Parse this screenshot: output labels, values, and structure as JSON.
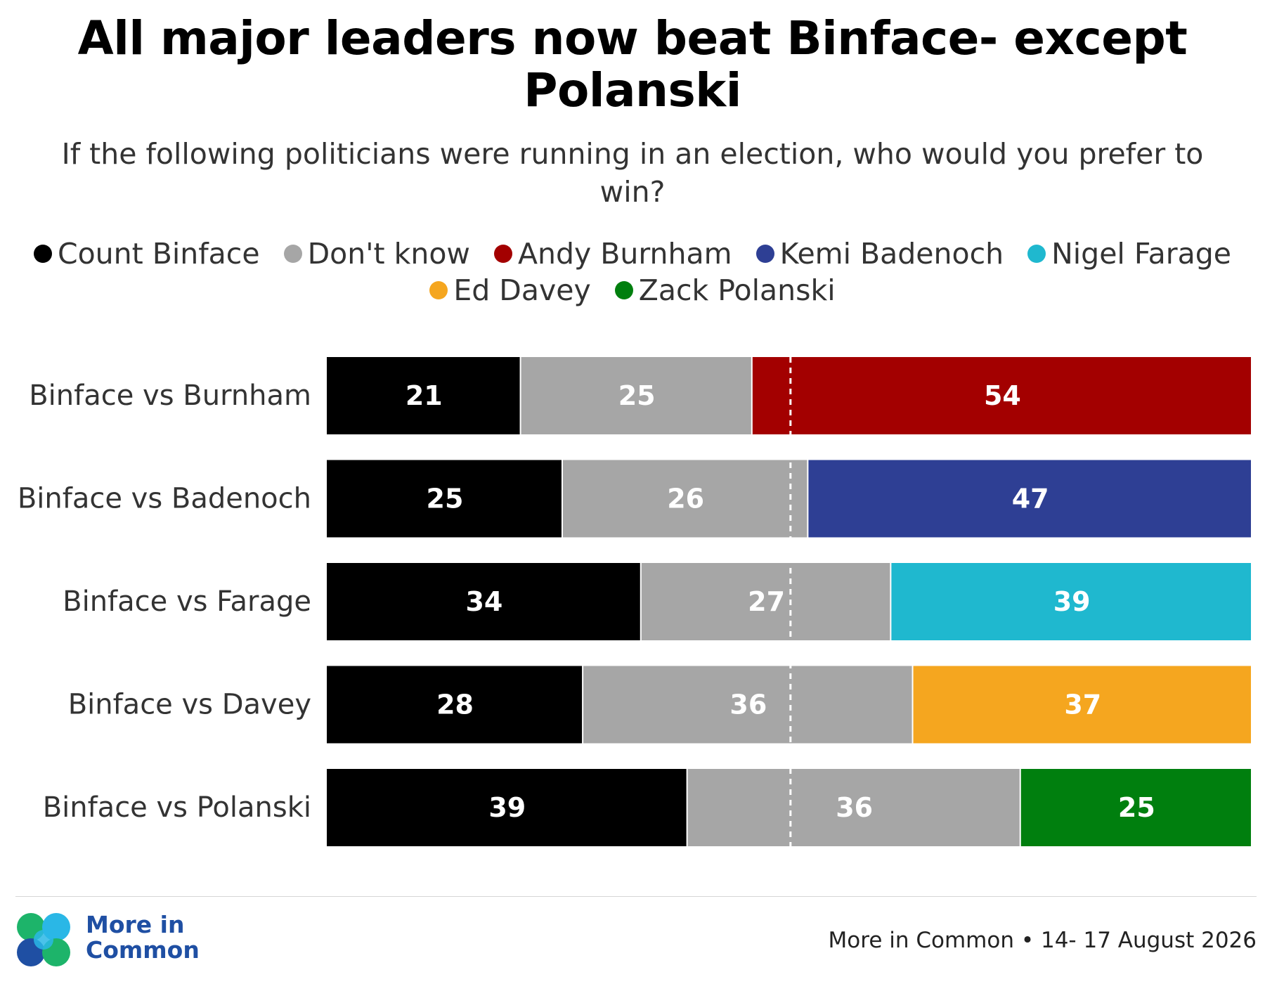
{
  "title": "All major leaders now beat Binface- except Polanski",
  "subtitle": "If the following politicians were running in an election, who would you prefer to win?",
  "legend": {
    "row1": [
      {
        "label": "Count Binface",
        "color": "#000000"
      },
      {
        "label": "Don't know",
        "color": "#a6a6a6"
      },
      {
        "label": "Andy Burnham",
        "color": "#a30000"
      },
      {
        "label": "Kemi Badenoch",
        "color": "#2e3f94"
      },
      {
        "label": "Nigel Farage",
        "color": "#1fb8cf"
      }
    ],
    "row2": [
      {
        "label": "Ed Davey",
        "color": "#f5a61f"
      },
      {
        "label": "Zack Polanski",
        "color": "#007f0e"
      }
    ]
  },
  "chart_data": {
    "type": "bar",
    "orientation": "horizontal",
    "stacked": true,
    "reference_line": 50,
    "categories": [
      "Binface vs Burnham",
      "Binface vs Badenoch",
      "Binface vs Farage",
      "Binface vs Davey",
      "Binface vs Polanski"
    ],
    "series": [
      {
        "name": "Count Binface",
        "values": [
          21,
          25,
          34,
          28,
          39
        ],
        "color": "#000000"
      },
      {
        "name": "Don't know",
        "values": [
          25,
          26,
          27,
          36,
          36
        ],
        "color": "#a6a6a6"
      },
      {
        "name": "Opponent",
        "values": [
          54,
          47,
          39,
          37,
          25
        ],
        "colors": [
          "#a30000",
          "#2e3f94",
          "#1fb8cf",
          "#f5a61f",
          "#007f0e"
        ]
      }
    ]
  },
  "footer": {
    "logo_line1": "More in",
    "logo_line2": "Common",
    "source": "More in Common • 14- 17 August 2026"
  }
}
